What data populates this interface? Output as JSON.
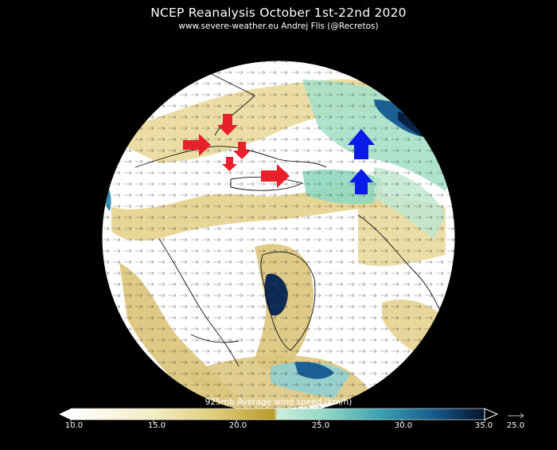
{
  "header": {
    "title": "NCEP Reanalysis   October 1st-22nd 2020",
    "subtitle": "www.severe-weather.eu    Andrej Flis (@Recretos)"
  },
  "colorbar": {
    "label": "925mb Average wind speed (km/h)",
    "ticks": [
      "10.0",
      "15.0",
      "20.0",
      "25.0",
      "30.0",
      "35.0"
    ],
    "reference_vector_label": "25.0",
    "colors": [
      "#ffffff",
      "#f3ecc4",
      "#e0cc7a",
      "#c8a832",
      "#b8e6c4",
      "#4fb8b0",
      "#1a6fa0",
      "#0a1a3a"
    ]
  },
  "map": {
    "land_color": "#ffffff",
    "ocean_color": "#ffffff",
    "arrows": [
      {
        "color": "red",
        "direction": "right"
      },
      {
        "color": "red",
        "direction": "down"
      },
      {
        "color": "red",
        "direction": "down"
      },
      {
        "color": "red",
        "direction": "down"
      },
      {
        "color": "red",
        "direction": "right"
      },
      {
        "color": "blue",
        "direction": "up"
      },
      {
        "color": "blue",
        "direction": "up"
      }
    ]
  }
}
